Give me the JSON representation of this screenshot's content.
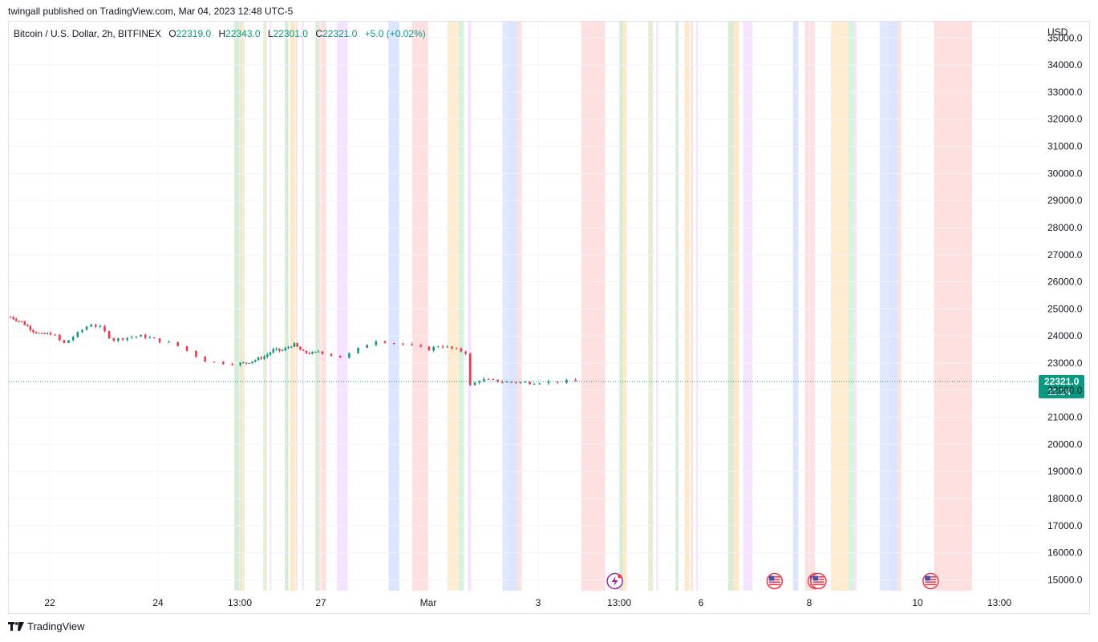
{
  "header": {
    "published": "twingall published on TradingView.com, Mar 04, 2023 12:48 UTC-5"
  },
  "legend": {
    "symbol": "Bitcoin / U.S. Dollar, 2h, BITFINEX",
    "o_key": "O",
    "o_val": "22319.0",
    "h_key": "H",
    "h_val": "22343.0",
    "l_key": "L",
    "l_val": "22301.0",
    "c_key": "C",
    "c_val": "22321.0",
    "change": "+5.0 (+0.02%)"
  },
  "footer": {
    "brand": "TradingView",
    "logo_icon": "tradingview-logo-icon"
  },
  "colors": {
    "up": "#089981",
    "down": "#f23645",
    "price_line": "#089981"
  },
  "chart_data": {
    "type": "candlestick",
    "currency": "USD",
    "ylim": [
      14600,
      35600
    ],
    "y_ticks": [
      15000,
      16000,
      17000,
      18000,
      19000,
      20000,
      21000,
      22000,
      23000,
      24000,
      25000,
      26000,
      27000,
      28000,
      29000,
      30000,
      31000,
      32000,
      33000,
      34000,
      35000
    ],
    "y_tick_labels": [
      "15000.0",
      "16000.0",
      "17000.0",
      "18000.0",
      "19000.0",
      "20000.0",
      "21000.0",
      "22000.0",
      "23000.0",
      "24000.0",
      "25000.0",
      "26000.0",
      "27000.0",
      "28000.0",
      "29000.0",
      "30000.0",
      "31000.0",
      "32000.0",
      "33000.0",
      "34000.0",
      "35000.0"
    ],
    "x_range_days": [
      20.8,
      30.95
    ],
    "x_ticks": [
      {
        "label": "22",
        "day": 22.0
      },
      {
        "label": "24",
        "day": 24.0
      },
      {
        "label": "13:00",
        "day": 24.75
      },
      {
        "label": "27",
        "day": 27.0
      },
      {
        "label": "Mar",
        "day": 28.0
      },
      {
        "label": "3",
        "day": 30.0
      },
      {
        "label": "13:00",
        "day": 30.75
      },
      {
        "label": "6",
        "day": 33.0
      },
      {
        "label": "8",
        "day": 35.0
      },
      {
        "label": "10",
        "day": 37.0
      },
      {
        "label": "13:00",
        "day": 37.75
      }
    ],
    "last_price": {
      "label": "22321.0",
      "countdown": "11:24",
      "value": 22321
    },
    "session_bands": [
      {
        "start": 24.7,
        "end": 24.8,
        "color": "#c8e6c9"
      },
      {
        "start": 24.8,
        "end": 24.88,
        "color": "#ffe0b2"
      },
      {
        "start": 25.4,
        "end": 25.5,
        "color": "#dce8c7"
      },
      {
        "start": 25.58,
        "end": 25.62,
        "color": "#f3d9ff"
      },
      {
        "start": 26.0,
        "end": 26.1,
        "color": "#c8e6c9"
      },
      {
        "start": 26.15,
        "end": 26.28,
        "color": "#ffe0b2"
      },
      {
        "start": 26.3,
        "end": 26.35,
        "color": "#ffd6d6"
      },
      {
        "start": 26.48,
        "end": 26.53,
        "color": "#f3d9ff"
      },
      {
        "start": 26.85,
        "end": 26.93,
        "color": "#c8e6c9"
      },
      {
        "start": 26.93,
        "end": 27.05,
        "color": "#ffd6d6"
      },
      {
        "start": 27.15,
        "end": 27.25,
        "color": "#f3d9ff"
      },
      {
        "start": 27.63,
        "end": 27.73,
        "color": "#cfdcff"
      },
      {
        "start": 27.85,
        "end": 28.0,
        "color": "#ffd6d6"
      },
      {
        "start": 28.35,
        "end": 28.55,
        "color": "#ffe6c2"
      },
      {
        "start": 28.55,
        "end": 28.65,
        "color": "#c8f0d0"
      },
      {
        "start": 28.72,
        "end": 28.78,
        "color": "#f3d9ff"
      },
      {
        "start": 29.35,
        "end": 29.45,
        "color": "#d6e2ff"
      },
      {
        "start": 29.45,
        "end": 29.62,
        "color": "#cfdcff"
      },
      {
        "start": 29.62,
        "end": 29.7,
        "color": "#ffd6d6"
      },
      {
        "start": 30.4,
        "end": 30.62,
        "color": "#ffd6d6"
      },
      {
        "start": 30.75,
        "end": 30.85,
        "color": "#c8e6c9"
      },
      {
        "start": 30.85,
        "end": 30.95,
        "color": "#ffe0b2"
      },
      {
        "start": 31.55,
        "end": 31.68,
        "color": "#dce8c7"
      },
      {
        "start": 31.77,
        "end": 31.82,
        "color": "#f3d9ff"
      },
      {
        "start": 32.3,
        "end": 32.38,
        "color": "#c8e6c9"
      },
      {
        "start": 32.55,
        "end": 32.68,
        "color": "#ffe0b2"
      },
      {
        "start": 32.72,
        "end": 32.78,
        "color": "#ffd6d6"
      },
      {
        "start": 32.87,
        "end": 32.92,
        "color": "#f3d9ff"
      },
      {
        "start": 33.5,
        "end": 33.6,
        "color": "#c8e6c9"
      },
      {
        "start": 33.6,
        "end": 33.7,
        "color": "#ffe0b2"
      },
      {
        "start": 33.78,
        "end": 33.95,
        "color": "#f3d9ff"
      },
      {
        "start": 34.7,
        "end": 34.8,
        "color": "#cfdcff"
      },
      {
        "start": 34.92,
        "end": 35.1,
        "color": "#ffd6d6"
      },
      {
        "start": 35.4,
        "end": 35.72,
        "color": "#ffe6c2"
      },
      {
        "start": 35.72,
        "end": 35.82,
        "color": "#c8f0d0"
      },
      {
        "start": 35.82,
        "end": 35.87,
        "color": "#f3d9ff"
      },
      {
        "start": 36.3,
        "end": 36.48,
        "color": "#d6e2ff"
      },
      {
        "start": 36.48,
        "end": 36.63,
        "color": "#cfdcff"
      },
      {
        "start": 36.63,
        "end": 36.7,
        "color": "#ffd6d6"
      },
      {
        "start": 37.15,
        "end": 37.5,
        "color": "#ffd6d6"
      }
    ],
    "event_markers": [
      {
        "day": 30.71,
        "icon": "lightning-event-icon"
      },
      {
        "day": 34.36,
        "icon": "us-flag-event-icon"
      },
      {
        "day": 35.12,
        "icon": "us-flag-event-icon"
      },
      {
        "day": 35.17,
        "icon": "us-flag-event-icon"
      },
      {
        "day": 37.12,
        "icon": "us-flag-event-icon"
      }
    ],
    "candle_anchors": [
      [
        20.85,
        24700
      ],
      [
        21.2,
        24500
      ],
      [
        21.5,
        24200
      ],
      [
        21.75,
        24050
      ],
      [
        22.05,
        24100
      ],
      [
        22.25,
        23700
      ],
      [
        22.45,
        24000
      ],
      [
        22.75,
        24450
      ],
      [
        22.95,
        24300
      ],
      [
        23.15,
        23850
      ],
      [
        23.45,
        23950
      ],
      [
        23.7,
        24000
      ],
      [
        23.9,
        23900
      ],
      [
        24.15,
        23700
      ],
      [
        24.45,
        23050
      ],
      [
        24.7,
        22980
      ],
      [
        24.9,
        23000
      ],
      [
        25.15,
        23100
      ],
      [
        25.45,
        23250
      ],
      [
        25.7,
        23500
      ],
      [
        25.9,
        23450
      ],
      [
        26.25,
        23700
      ],
      [
        26.5,
        23400
      ],
      [
        26.8,
        23350
      ],
      [
        26.95,
        23450
      ],
      [
        27.2,
        23200
      ],
      [
        27.5,
        23850
      ],
      [
        27.75,
        23700
      ],
      [
        28.0,
        23500
      ],
      [
        28.2,
        23650
      ],
      [
        28.5,
        23500
      ],
      [
        28.68,
        23400
      ],
      [
        28.72,
        22100
      ],
      [
        28.95,
        22400
      ],
      [
        29.4,
        22300
      ],
      [
        29.9,
        22280
      ],
      [
        30.2,
        22320
      ],
      [
        30.35,
        22321
      ]
    ],
    "candle_interval_days": 0.0833
  }
}
